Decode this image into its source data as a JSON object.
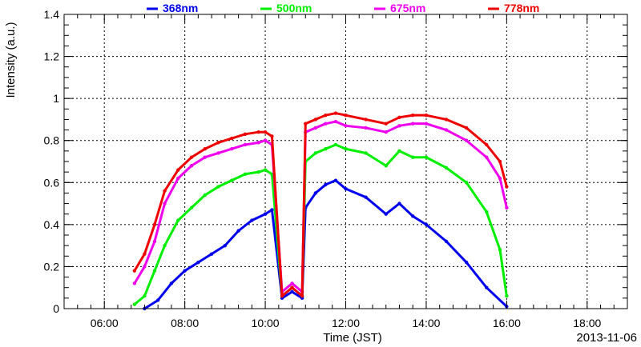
{
  "chart_data": {
    "type": "scatter",
    "xlabel": "Time (JST)",
    "ylabel": "Intensity (a.u.)",
    "date_label": "2013-11-06",
    "xlim": [
      "05:00",
      "19:00"
    ],
    "ylim": [
      0,
      1.4
    ],
    "grid": true,
    "legend_position": "top",
    "x_ticks": [
      "06:00",
      "08:00",
      "10:00",
      "12:00",
      "14:00",
      "16:00",
      "18:00"
    ],
    "y_ticks": [
      "0",
      "0.2",
      "0.4",
      "0.6",
      "0.8",
      "1",
      "1.2",
      "1.4"
    ],
    "series": [
      {
        "name": "368nm",
        "color": "#0000ee",
        "x": [
          "07:00",
          "07:20",
          "07:40",
          "08:00",
          "08:20",
          "08:40",
          "09:00",
          "09:20",
          "09:40",
          "10:00",
          "10:10",
          "10:25",
          "10:40",
          "10:55",
          "11:00",
          "11:15",
          "11:30",
          "11:45",
          "12:00",
          "12:30",
          "13:00",
          "13:20",
          "13:40",
          "14:00",
          "14:30",
          "15:00",
          "15:30",
          "16:00"
        ],
        "y": [
          0.0,
          0.04,
          0.12,
          0.18,
          0.22,
          0.26,
          0.3,
          0.37,
          0.42,
          0.45,
          0.47,
          0.05,
          0.08,
          0.05,
          0.48,
          0.55,
          0.59,
          0.61,
          0.57,
          0.53,
          0.45,
          0.5,
          0.44,
          0.4,
          0.32,
          0.22,
          0.1,
          0.01
        ]
      },
      {
        "name": "500nm",
        "color": "#00ee00",
        "x": [
          "06:45",
          "07:00",
          "07:15",
          "07:30",
          "07:50",
          "08:10",
          "08:30",
          "08:50",
          "09:10",
          "09:30",
          "09:50",
          "10:00",
          "10:10",
          "10:25",
          "10:40",
          "10:55",
          "11:00",
          "11:15",
          "11:30",
          "11:45",
          "12:00",
          "12:30",
          "13:00",
          "13:20",
          "13:40",
          "14:00",
          "14:30",
          "15:00",
          "15:30",
          "15:50",
          "16:00"
        ],
        "y": [
          0.02,
          0.06,
          0.18,
          0.3,
          0.42,
          0.48,
          0.54,
          0.58,
          0.61,
          0.64,
          0.65,
          0.66,
          0.64,
          0.06,
          0.1,
          0.06,
          0.7,
          0.74,
          0.76,
          0.78,
          0.76,
          0.74,
          0.68,
          0.75,
          0.72,
          0.72,
          0.67,
          0.6,
          0.46,
          0.28,
          0.06
        ]
      },
      {
        "name": "675nm",
        "color": "#ee00ee",
        "x": [
          "06:45",
          "07:00",
          "07:15",
          "07:30",
          "07:50",
          "08:10",
          "08:30",
          "08:50",
          "09:10",
          "09:30",
          "09:50",
          "10:00",
          "10:10",
          "10:25",
          "10:40",
          "10:55",
          "11:00",
          "11:15",
          "11:30",
          "11:45",
          "12:00",
          "12:30",
          "13:00",
          "13:20",
          "13:40",
          "14:00",
          "14:30",
          "15:00",
          "15:30",
          "15:50",
          "16:00"
        ],
        "y": [
          0.12,
          0.2,
          0.32,
          0.5,
          0.62,
          0.68,
          0.72,
          0.74,
          0.76,
          0.78,
          0.79,
          0.8,
          0.78,
          0.08,
          0.12,
          0.08,
          0.84,
          0.86,
          0.88,
          0.89,
          0.87,
          0.86,
          0.84,
          0.87,
          0.88,
          0.88,
          0.85,
          0.8,
          0.72,
          0.62,
          0.48
        ]
      },
      {
        "name": "778nm",
        "color": "#ee0000",
        "x": [
          "06:45",
          "07:00",
          "07:15",
          "07:30",
          "07:50",
          "08:10",
          "08:30",
          "08:50",
          "09:10",
          "09:30",
          "09:50",
          "10:00",
          "10:10",
          "10:25",
          "10:40",
          "10:55",
          "11:00",
          "11:15",
          "11:30",
          "11:45",
          "12:00",
          "12:30",
          "13:00",
          "13:20",
          "13:40",
          "14:00",
          "14:30",
          "15:00",
          "15:30",
          "15:50",
          "16:00"
        ],
        "y": [
          0.18,
          0.26,
          0.4,
          0.56,
          0.66,
          0.72,
          0.76,
          0.79,
          0.81,
          0.83,
          0.84,
          0.84,
          0.82,
          0.06,
          0.1,
          0.06,
          0.88,
          0.9,
          0.92,
          0.93,
          0.92,
          0.9,
          0.88,
          0.91,
          0.92,
          0.92,
          0.9,
          0.86,
          0.78,
          0.7,
          0.58
        ]
      }
    ]
  }
}
